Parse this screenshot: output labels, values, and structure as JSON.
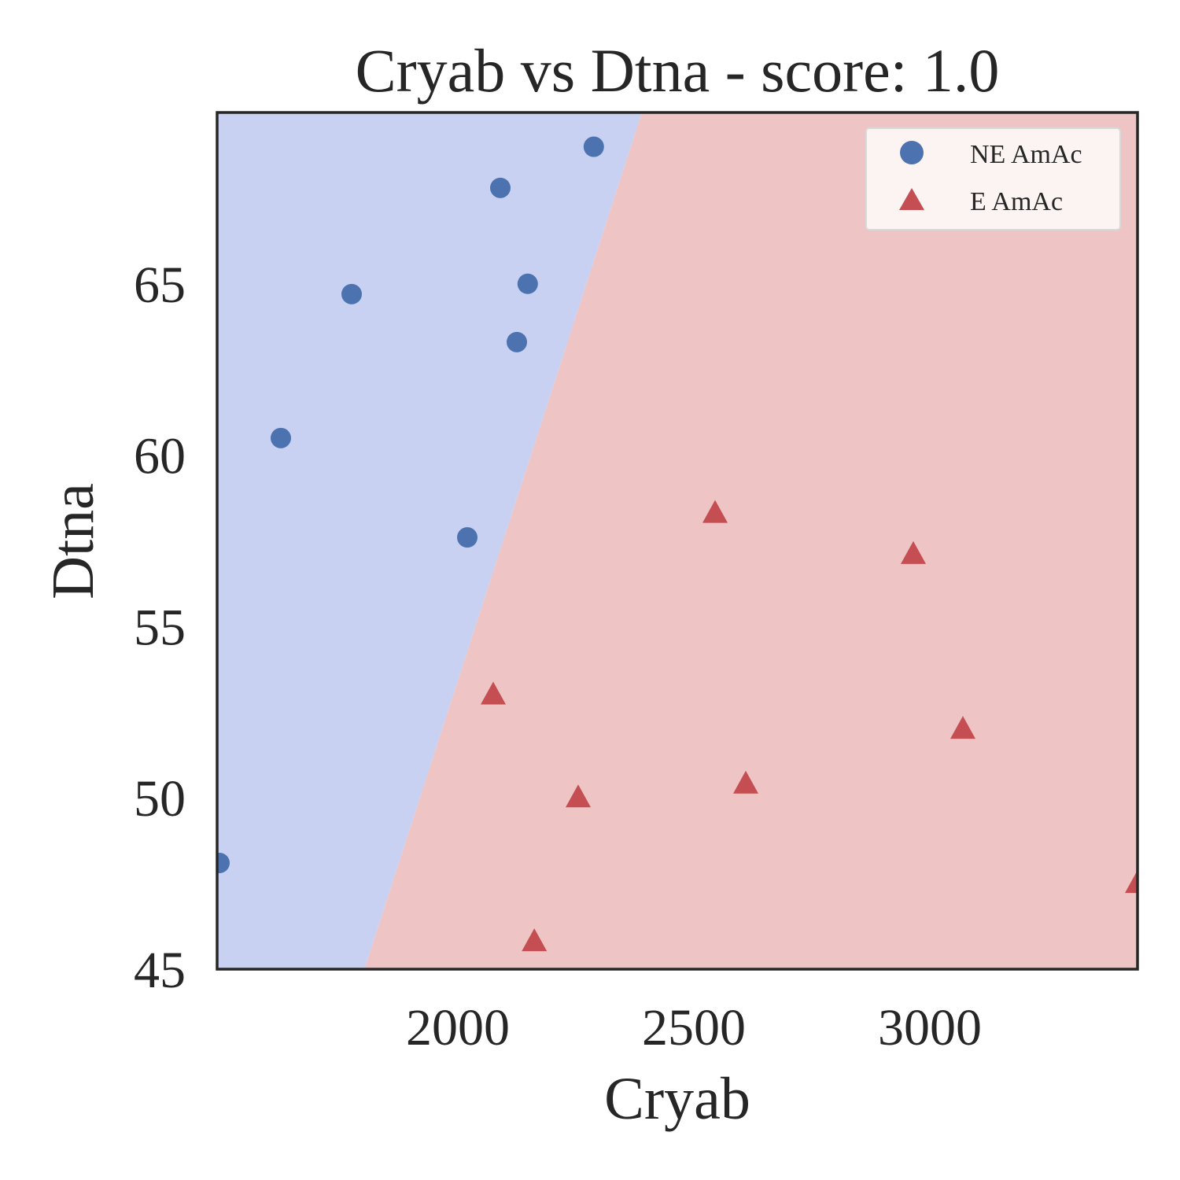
{
  "chart_data": {
    "type": "scatter",
    "title": "Cryab vs Dtna - score: 1.0",
    "xlabel": "Cryab",
    "ylabel": "Dtna",
    "xlim": [
      1490,
      3440
    ],
    "ylim": [
      45,
      70
    ],
    "xticks": [
      2000,
      2500,
      3000
    ],
    "yticks": [
      45,
      50,
      55,
      60,
      65
    ],
    "grid": false,
    "legend_position": "top-right",
    "decision_boundary": {
      "points": [
        [
          1802,
          45
        ],
        [
          2390,
          70
        ]
      ],
      "left_region_color": "#c8d1f1",
      "right_region_color": "#eec4c4"
    },
    "series": [
      {
        "name": "NE AmAc",
        "marker": "circle",
        "color": "#4c72b0",
        "points": [
          [
            1495,
            48.1
          ],
          [
            1625,
            60.5
          ],
          [
            1775,
            64.7
          ],
          [
            2020,
            57.6
          ],
          [
            2090,
            67.8
          ],
          [
            2125,
            63.3
          ],
          [
            2148,
            65.0
          ],
          [
            2288,
            69.0
          ]
        ]
      },
      {
        "name": "E AmAc",
        "marker": "triangle",
        "color": "#c44e52",
        "points": [
          [
            2075,
            53.0
          ],
          [
            2162,
            45.8
          ],
          [
            2255,
            50.0
          ],
          [
            2545,
            58.3
          ],
          [
            2610,
            50.4
          ],
          [
            2965,
            57.1
          ],
          [
            3070,
            52.0
          ],
          [
            3440,
            47.5
          ]
        ]
      }
    ]
  }
}
